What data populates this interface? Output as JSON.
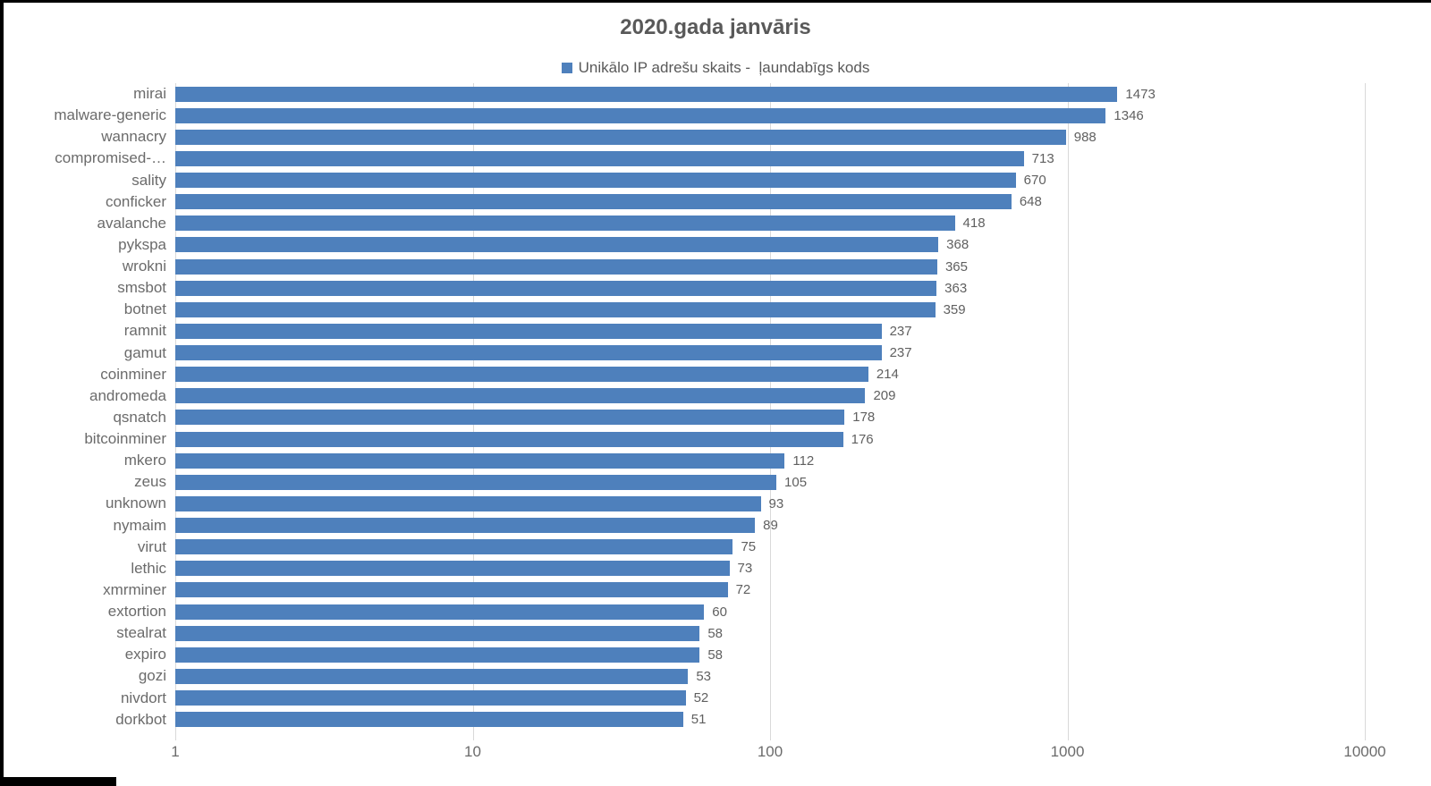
{
  "chart_data": {
    "type": "bar",
    "orientation": "horizontal",
    "title": "2020.gada janvāris",
    "legend": {
      "label": "Unikālo IP adrešu skaits -  ļaundabīgs kods",
      "position": "top"
    },
    "categories": [
      "mirai",
      "malware-generic",
      "wannacry",
      "compromised-…",
      "sality",
      "conficker",
      "avalanche",
      "pykspa",
      "wrokni",
      "smsbot",
      "botnet",
      "ramnit",
      "gamut",
      "coinminer",
      "andromeda",
      "qsnatch",
      "bitcoinminer",
      "mkero",
      "zeus",
      "unknown",
      "nymaim",
      "virut",
      "lethic",
      "xmrminer",
      "extortion",
      "stealrat",
      "expiro",
      "gozi",
      "nivdort",
      "dorkbot"
    ],
    "values": [
      1473,
      1346,
      988,
      713,
      670,
      648,
      418,
      368,
      365,
      363,
      359,
      237,
      237,
      214,
      209,
      178,
      176,
      112,
      105,
      93,
      89,
      75,
      73,
      72,
      60,
      58,
      58,
      53,
      52,
      51
    ],
    "x_scale": "log10",
    "xlim": [
      1,
      10000
    ],
    "x_ticks": [
      1,
      10,
      100,
      1000,
      10000
    ],
    "grid": true,
    "bar_color": "#4e80bc",
    "gridline_color": "#d9d9d9",
    "text_color": "#595959"
  }
}
